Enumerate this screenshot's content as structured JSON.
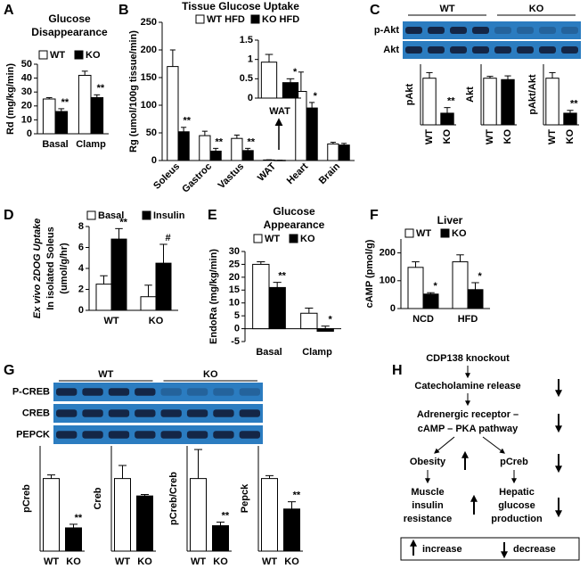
{
  "chart_data": [
    {
      "type": "bar",
      "panel": "A",
      "title": [
        "Glucose",
        "Disappearance"
      ],
      "ylabel": "Rd (mg/kg/min)",
      "categories": [
        "Basal",
        "Clamp"
      ],
      "series": [
        {
          "name": "WT",
          "color": "#ffffff",
          "values": [
            25,
            42
          ],
          "errors": [
            1,
            3
          ]
        },
        {
          "name": "KO",
          "color": "#000000",
          "values": [
            16,
            26
          ],
          "errors": [
            2,
            2
          ],
          "annotations": [
            "**",
            "**"
          ]
        }
      ],
      "ylim": [
        0,
        50
      ],
      "yticks": [
        0,
        10,
        20,
        30,
        40,
        50
      ]
    },
    {
      "type": "bar",
      "panel": "B",
      "title": "Tissue Glucose Uptake",
      "ylabel": "Rg (umol/100g tissue/min)",
      "categories": [
        "Soleus",
        "Gastroc",
        "Vastus",
        "WAT",
        "Heart",
        "Brain"
      ],
      "series": [
        {
          "name": "WT HFD",
          "color": "#ffffff",
          "values": [
            170,
            45,
            40,
            1,
            125,
            30
          ],
          "errors": [
            30,
            8,
            6,
            0.3,
            35,
            3
          ]
        },
        {
          "name": "KO HFD",
          "color": "#000000",
          "values": [
            52,
            17,
            18,
            0.4,
            95,
            28
          ],
          "errors": [
            8,
            5,
            4,
            0.1,
            10,
            3
          ],
          "annotations": [
            "**",
            "**",
            "**",
            null,
            "*",
            null
          ]
        }
      ],
      "ylim": [
        0,
        250
      ],
      "yticks": [
        0,
        50,
        100,
        150,
        200,
        250
      ]
    },
    {
      "type": "bar",
      "xlabel": "WAT",
      "values": [
        0.93,
        0.4
      ],
      "errors": [
        0.2,
        0.1
      ],
      "colors": [
        "#ffffff",
        "#000000"
      ],
      "annotations": [
        null,
        "*"
      ],
      "ylim": [
        0,
        1.5
      ],
      "yticks": [
        0,
        0.5,
        1,
        1.5
      ]
    },
    {
      "type": "bar",
      "ylabel": "pAkt",
      "categories": [
        "WT",
        "KO"
      ],
      "values": [
        1,
        0.25
      ],
      "errors": [
        0.12,
        0.12
      ],
      "colors": [
        "#ffffff",
        "#000000"
      ],
      "annotations": [
        null,
        "**"
      ],
      "ylim": [
        0,
        1.3
      ]
    },
    {
      "type": "bar",
      "ylabel": "Akt",
      "categories": [
        "WT",
        "KO"
      ],
      "values": [
        1,
        0.97
      ],
      "errors": [
        0.04,
        0.08
      ],
      "colors": [
        "#ffffff",
        "#000000"
      ],
      "ylim": [
        0,
        1.3
      ]
    },
    {
      "type": "bar",
      "ylabel": "pAkt/Akt",
      "categories": [
        "WT",
        "KO"
      ],
      "values": [
        1,
        0.25
      ],
      "errors": [
        0.12,
        0.06
      ],
      "colors": [
        "#ffffff",
        "#000000"
      ],
      "annotations": [
        null,
        "**"
      ],
      "ylim": [
        0,
        1.3
      ]
    },
    {
      "type": "bar",
      "panel": "D",
      "ylabel": [
        "Ex vivo 2DOG Uptake",
        "In isolated Soleus",
        "(umol/g/hr)"
      ],
      "categories": [
        "WT",
        "KO"
      ],
      "series": [
        {
          "name": "Basal",
          "color": "#ffffff",
          "values": [
            2.5,
            1.3
          ],
          "errors": [
            0.8,
            1.1
          ]
        },
        {
          "name": "Insulin",
          "color": "#000000",
          "values": [
            6.8,
            4.5
          ],
          "errors": [
            1,
            1.8
          ],
          "annotations": [
            "**",
            "#"
          ]
        }
      ],
      "ylim": [
        0,
        8
      ],
      "yticks": [
        0,
        2,
        4,
        6,
        8
      ]
    },
    {
      "type": "bar",
      "panel": "E",
      "title": [
        "Glucose",
        "Appearance"
      ],
      "ylabel": "EndoRa (mg/kg/min)",
      "categories": [
        "Basal",
        "Clamp"
      ],
      "series": [
        {
          "name": "WT",
          "color": "#ffffff",
          "values": [
            25,
            6
          ],
          "errors": [
            1,
            2
          ]
        },
        {
          "name": "KO",
          "color": "#000000",
          "values": [
            16,
            -1
          ],
          "errors": [
            2,
            2
          ],
          "annotations": [
            "**",
            "*"
          ]
        }
      ],
      "ylim": [
        -5,
        30
      ],
      "yticks": [
        -5,
        0,
        5,
        10,
        15,
        20,
        25,
        30
      ]
    },
    {
      "type": "bar",
      "panel": "F",
      "title": "Liver",
      "ylabel": "cAMP (pmol/g)",
      "categories": [
        "NCD",
        "HFD"
      ],
      "series": [
        {
          "name": "WT",
          "color": "#ffffff",
          "values": [
            148,
            168
          ],
          "errors": [
            20,
            25
          ]
        },
        {
          "name": "KO",
          "color": "#000000",
          "values": [
            52,
            68
          ],
          "errors": [
            5,
            25
          ],
          "annotations": [
            "*",
            "*"
          ]
        }
      ],
      "ylim": [
        0,
        250
      ],
      "yticks": [
        0,
        100,
        200
      ]
    },
    {
      "type": "bar",
      "ylabel": "pCreb",
      "categories": [
        "WT",
        "KO"
      ],
      "values": [
        1,
        0.32
      ],
      "errors": [
        0.05,
        0.05
      ],
      "colors": [
        "#ffffff",
        "#000000"
      ],
      "annotations": [
        null,
        "**"
      ],
      "ylim": [
        0,
        1.45
      ]
    },
    {
      "type": "bar",
      "ylabel": "Creb",
      "categories": [
        "WT",
        "KO"
      ],
      "values": [
        1,
        0.76
      ],
      "errors": [
        0.18,
        0.02
      ],
      "colors": [
        "#ffffff",
        "#000000"
      ],
      "ylim": [
        0,
        1.45
      ]
    },
    {
      "type": "bar",
      "ylabel": "pCreb/Creb",
      "categories": [
        "WT",
        "KO"
      ],
      "values": [
        1,
        0.35
      ],
      "errors": [
        0.4,
        0.05
      ],
      "colors": [
        "#ffffff",
        "#000000"
      ],
      "annotations": [
        null,
        "**"
      ],
      "ylim": [
        0,
        1.45
      ]
    },
    {
      "type": "bar",
      "ylabel": "Pepck",
      "categories": [
        "WT",
        "KO"
      ],
      "values": [
        1,
        0.58
      ],
      "errors": [
        0.04,
        0.1
      ],
      "colors": [
        "#ffffff",
        "#000000"
      ],
      "annotations": [
        null,
        "**"
      ],
      "ylim": [
        0,
        1.45
      ]
    }
  ],
  "blots": [
    {
      "panel": "C",
      "groups": [
        "WT",
        "KO"
      ],
      "rows": [
        "p-Akt",
        "Akt"
      ]
    },
    {
      "panel": "G",
      "groups": [
        "WT",
        "KO"
      ],
      "rows": [
        "P-CREB",
        "CREB",
        "PEPCK"
      ]
    }
  ],
  "diagram": {
    "panel": "H",
    "nodes": [
      {
        "label": "CDP138 knockout"
      },
      {
        "label": "Catecholamine release"
      },
      {
        "lines": [
          "Adrenergic receptor –",
          "cAMP – PKA pathway"
        ]
      },
      {
        "label": "Obesity"
      },
      {
        "label": "pCreb"
      },
      {
        "lines": [
          "Muscle",
          "insulin",
          "resistance"
        ]
      },
      {
        "lines": [
          "Hepatic",
          "glucose",
          "production"
        ]
      }
    ],
    "legend": [
      "increase",
      "decrease"
    ]
  }
}
